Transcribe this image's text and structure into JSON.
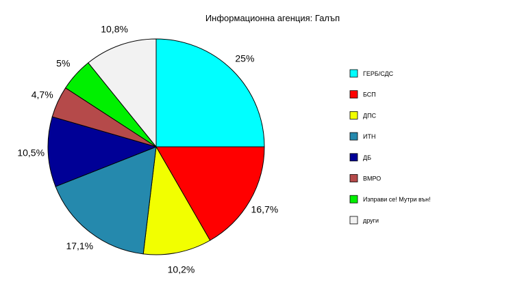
{
  "chart_data": {
    "type": "pie",
    "title": "Информационна агенция: Галъп",
    "slices": [
      {
        "name": "ГЕРБ/СДС",
        "value": 25,
        "label": "25%",
        "color": "#00ffff"
      },
      {
        "name": "БСП",
        "value": 16.7,
        "label": "16,7%",
        "color": "#ff0000"
      },
      {
        "name": "ДПС",
        "value": 10.2,
        "label": "10,2%",
        "color": "#f2ff00"
      },
      {
        "name": "ИТН",
        "value": 17.1,
        "label": "17,1%",
        "color": "#2589ad"
      },
      {
        "name": "ДБ",
        "value": 10.5,
        "label": "10,5%",
        "color": "#000096"
      },
      {
        "name": "ВМРО",
        "value": 4.7,
        "label": "4,7%",
        "color": "#b54a4a"
      },
      {
        "name": "Изправи се! Мутри вън!",
        "value": 5,
        "label": "5%",
        "color": "#00f000"
      },
      {
        "name": "други",
        "value": 10.8,
        "label": "10,8%",
        "color": "#f2f2f2"
      }
    ],
    "legend_position": "right"
  }
}
